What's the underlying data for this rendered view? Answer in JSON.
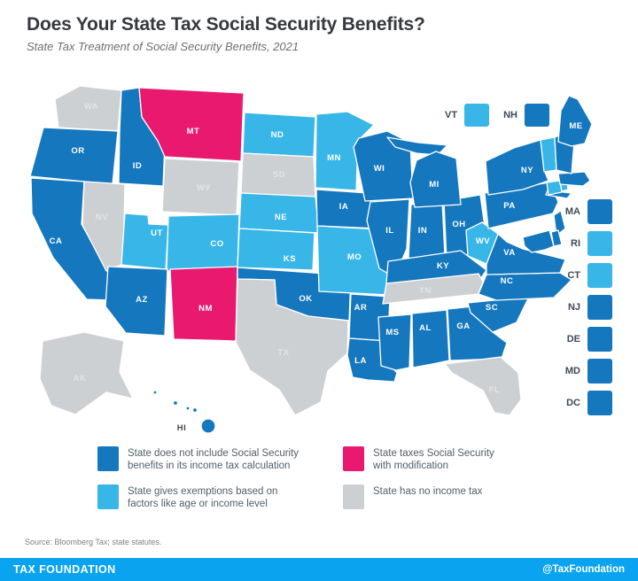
{
  "header": {
    "title": "Does Your State Tax Social Security Benefits?",
    "subtitle": "State Tax Treatment of Social Security Benefits, 2021"
  },
  "categories": {
    "no_tax": {
      "label_lines": [
        "State does not include Social Security",
        "benefits in its income tax calculation"
      ],
      "color": "#1577BE"
    },
    "exemptions": {
      "label_lines": [
        "State gives exemptions based on",
        "factors like age or income level"
      ],
      "color": "#38B6E8"
    },
    "modification": {
      "label_lines": [
        "State taxes Social Security",
        "with modification"
      ],
      "color": "#E8196F"
    },
    "no_income_tax": {
      "label_lines": [
        "State has no income tax"
      ],
      "color": "#CDD0D3"
    }
  },
  "label_colors": {
    "on_state": "#FFFFFF",
    "on_gray_state": "#E2E4E6",
    "floating": "#3F4A54"
  },
  "map": {
    "states": [
      {
        "abbr": "WA",
        "category": "no_income_tax"
      },
      {
        "abbr": "OR",
        "category": "no_tax"
      },
      {
        "abbr": "CA",
        "category": "no_tax"
      },
      {
        "abbr": "NV",
        "category": "no_income_tax"
      },
      {
        "abbr": "ID",
        "category": "no_tax"
      },
      {
        "abbr": "MT",
        "category": "modification"
      },
      {
        "abbr": "WY",
        "category": "no_income_tax"
      },
      {
        "abbr": "UT",
        "category": "exemptions"
      },
      {
        "abbr": "CO",
        "category": "exemptions"
      },
      {
        "abbr": "AZ",
        "category": "no_tax"
      },
      {
        "abbr": "NM",
        "category": "modification"
      },
      {
        "abbr": "ND",
        "category": "exemptions"
      },
      {
        "abbr": "SD",
        "category": "no_income_tax"
      },
      {
        "abbr": "NE",
        "category": "exemptions"
      },
      {
        "abbr": "KS",
        "category": "exemptions"
      },
      {
        "abbr": "OK",
        "category": "no_tax"
      },
      {
        "abbr": "TX",
        "category": "no_income_tax"
      },
      {
        "abbr": "MN",
        "category": "exemptions"
      },
      {
        "abbr": "IA",
        "category": "no_tax"
      },
      {
        "abbr": "MO",
        "category": "exemptions"
      },
      {
        "abbr": "AR",
        "category": "no_tax"
      },
      {
        "abbr": "LA",
        "category": "no_tax"
      },
      {
        "abbr": "WI",
        "category": "no_tax"
      },
      {
        "abbr": "IL",
        "category": "no_tax"
      },
      {
        "abbr": "IN",
        "category": "no_tax"
      },
      {
        "abbr": "OH",
        "category": "no_tax"
      },
      {
        "abbr": "MI",
        "category": "no_tax"
      },
      {
        "abbr": "KY",
        "category": "no_tax"
      },
      {
        "abbr": "TN",
        "category": "no_income_tax"
      },
      {
        "abbr": "MS",
        "category": "no_tax"
      },
      {
        "abbr": "AL",
        "category": "no_tax"
      },
      {
        "abbr": "GA",
        "category": "no_tax"
      },
      {
        "abbr": "FL",
        "category": "no_income_tax"
      },
      {
        "abbr": "SC",
        "category": "no_tax"
      },
      {
        "abbr": "NC",
        "category": "no_tax"
      },
      {
        "abbr": "VA",
        "category": "no_tax"
      },
      {
        "abbr": "WV",
        "category": "exemptions"
      },
      {
        "abbr": "PA",
        "category": "no_tax"
      },
      {
        "abbr": "NY",
        "category": "no_tax"
      },
      {
        "abbr": "NJ",
        "category": "no_tax"
      },
      {
        "abbr": "DE",
        "category": "no_tax"
      },
      {
        "abbr": "MD",
        "category": "no_tax"
      },
      {
        "abbr": "CT",
        "category": "exemptions"
      },
      {
        "abbr": "RI",
        "category": "exemptions"
      },
      {
        "abbr": "MA",
        "category": "no_tax"
      },
      {
        "abbr": "VT",
        "category": "exemptions"
      },
      {
        "abbr": "NH",
        "category": "no_tax"
      },
      {
        "abbr": "ME",
        "category": "no_tax"
      },
      {
        "abbr": "AK",
        "category": "no_income_tax"
      },
      {
        "abbr": "HI",
        "category": "no_tax"
      }
    ],
    "inset": [
      {
        "abbr": "VT",
        "category": "exemptions"
      },
      {
        "abbr": "NH",
        "category": "no_tax"
      }
    ],
    "east_column": [
      {
        "abbr": "MA",
        "category": "no_tax"
      },
      {
        "abbr": "RI",
        "category": "exemptions"
      },
      {
        "abbr": "CT",
        "category": "exemptions"
      },
      {
        "abbr": "NJ",
        "category": "no_tax"
      },
      {
        "abbr": "DE",
        "category": "no_tax"
      },
      {
        "abbr": "MD",
        "category": "no_tax"
      },
      {
        "abbr": "DC",
        "category": "no_tax"
      }
    ]
  },
  "source": "Source: Bloomberg Tax; state statutes.",
  "footer": {
    "brand": "TAX FOUNDATION",
    "handle": "@TaxFoundation",
    "bar_color": "#0AA3EF"
  }
}
